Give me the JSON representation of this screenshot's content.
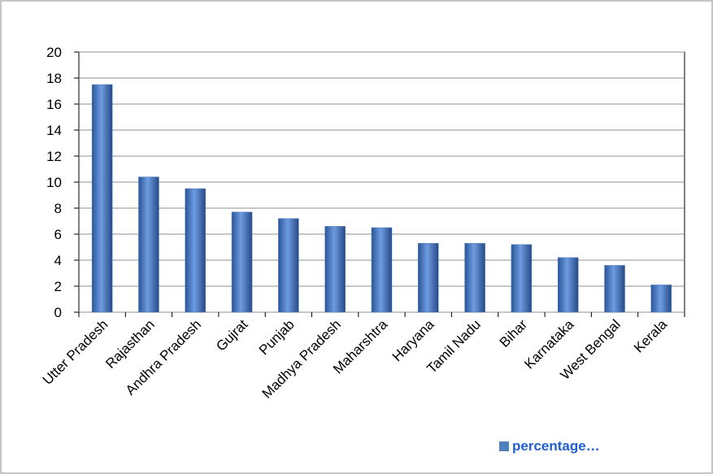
{
  "chart_data": {
    "type": "bar",
    "categories": [
      "Utter Pradesh",
      "Rajasthan",
      "Andhra Pradesh",
      "Gujrat",
      "Punjab",
      "Madhya Pradesh",
      "Maharshtra",
      "Haryana",
      "Tamil Nadu",
      "Bihar",
      "Karnataka",
      "West Bengal",
      "Kerala"
    ],
    "series": [
      {
        "name": "percentage…",
        "color": "#4f81bd",
        "values": [
          17.5,
          10.4,
          9.5,
          7.7,
          7.2,
          6.6,
          6.5,
          5.3,
          5.3,
          5.2,
          4.2,
          3.6,
          2.1
        ]
      }
    ],
    "ylim": [
      0,
      20
    ],
    "yticks": [
      0,
      2,
      4,
      6,
      8,
      10,
      12,
      14,
      16,
      18,
      20
    ],
    "grid": true,
    "legend": "bottom-right"
  }
}
